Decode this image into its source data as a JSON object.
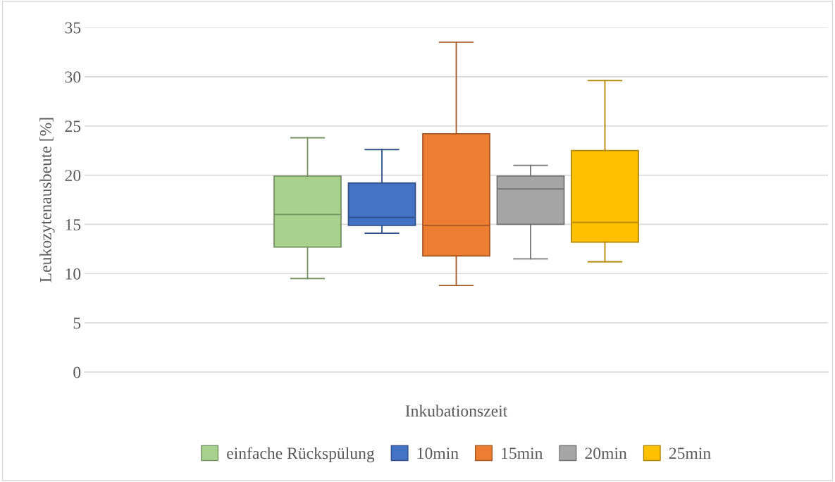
{
  "chart_data": {
    "type": "box",
    "xlabel": "Inkubationszeit",
    "ylabel": "Leukozytenausbeute [%]",
    "categories": [
      null
    ],
    "series": [
      {
        "name": "einfache Rückspülung",
        "color": "#a9d18e",
        "boxes": [
          {
            "low": 9.5,
            "q1": 12.7,
            "median": 16.0,
            "q3": 19.9,
            "high": 23.8
          }
        ]
      },
      {
        "name": "10min",
        "color": "#4472c4",
        "boxes": [
          {
            "low": 14.1,
            "q1": 14.9,
            "median": 15.7,
            "q3": 19.2,
            "high": 22.6
          }
        ]
      },
      {
        "name": "15min",
        "color": "#ed7d31",
        "boxes": [
          {
            "low": 8.8,
            "q1": 11.8,
            "median": 14.9,
            "q3": 24.2,
            "high": 33.5
          }
        ]
      },
      {
        "name": "20min",
        "color": "#a5a5a5",
        "boxes": [
          {
            "low": 11.5,
            "q1": 15.0,
            "median": 18.6,
            "q3": 19.9,
            "high": 21.0
          }
        ]
      },
      {
        "name": "25min",
        "color": "#ffc000",
        "boxes": [
          {
            "low": 11.2,
            "q1": 13.2,
            "median": 15.2,
            "q3": 22.5,
            "high": 29.6
          }
        ]
      }
    ],
    "ylim": [
      0,
      35
    ],
    "yticks": [
      0,
      5,
      10,
      15,
      20,
      25,
      30,
      35
    ],
    "grid": "y",
    "legend": "bottom"
  }
}
